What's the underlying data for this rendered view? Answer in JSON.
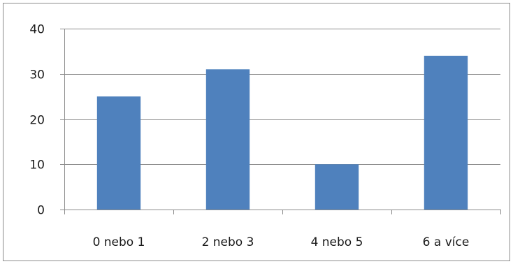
{
  "chart_data": {
    "type": "bar",
    "title": "",
    "xlabel": "",
    "ylabel": "",
    "categories": [
      "0 nebo 1",
      "2 nebo 3",
      "4 nebo 5",
      "6 a více"
    ],
    "values": [
      25,
      31,
      10,
      34
    ],
    "ylim": [
      0,
      40
    ],
    "yticks": [
      "0",
      "10",
      "20",
      "30",
      "40"
    ],
    "grid": true,
    "legend": "none",
    "bar_color": "#4f81bd",
    "grid_color": "#8c8c8c"
  }
}
